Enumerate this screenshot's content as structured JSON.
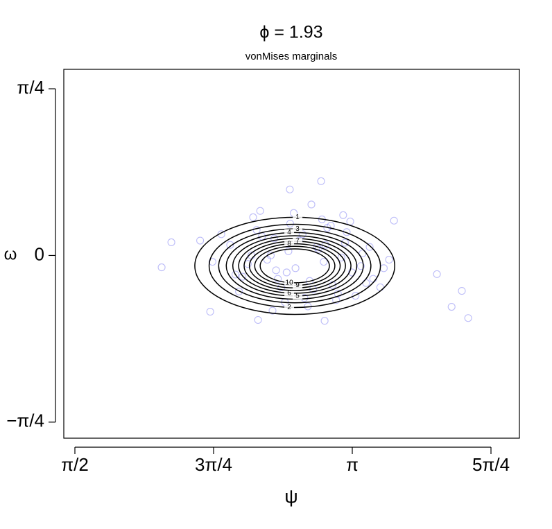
{
  "chart_data": {
    "type": "contour",
    "title": "ϕ = 1.93",
    "subtitle": "vonMises marginals",
    "x_label": "ψ",
    "y_label": "ω",
    "xlim": [
      1.508,
      4.088
    ],
    "ylim": [
      -0.861,
      0.877
    ],
    "xticks": [
      {
        "value": 1.5708,
        "label": "π/2"
      },
      {
        "value": 2.3562,
        "label": "3π/4"
      },
      {
        "value": 3.1416,
        "label": "π"
      },
      {
        "value": 3.927,
        "label": "5π/4"
      }
    ],
    "yticks": [
      {
        "value": -0.7854,
        "label": "−π/4"
      },
      0,
      {
        "value": 0.7854,
        "label": "π/4"
      }
    ],
    "point_color": "#6a6af0",
    "contour_color": "#000000",
    "x": [
      2.062,
      2.117,
      3.621,
      3.704,
      3.762,
      3.798,
      2.788,
      2.965,
      3.378,
      2.337,
      2.608,
      2.985,
      2.45,
      2.52,
      2.6,
      2.66,
      2.7,
      2.74,
      2.78,
      2.82,
      2.86,
      2.9,
      2.94,
      2.98,
      3.02,
      3.06,
      3.1,
      3.14,
      3.2,
      3.26,
      2.55,
      2.63,
      2.71,
      2.79,
      2.87,
      2.95,
      3.03,
      3.11,
      3.19,
      2.48,
      2.58,
      2.68,
      2.76,
      2.84,
      2.92,
      3.0,
      3.08,
      3.16,
      3.24,
      3.32,
      2.4,
      2.5,
      2.62,
      2.72,
      2.81,
      2.89,
      2.97,
      3.05,
      3.13,
      3.22,
      2.35,
      3.35,
      2.28,
      3.3,
      2.69,
      2.91,
      3.09,
      2.57,
      2.77,
      2.99
    ],
    "y": [
      -0.056,
      0.062,
      -0.088,
      -0.242,
      -0.167,
      -0.295,
      0.311,
      0.35,
      0.164,
      -0.265,
      -0.304,
      -0.308,
      0.05,
      -0.1,
      0.12,
      -0.02,
      0.08,
      -0.15,
      0.02,
      -0.06,
      0.1,
      -0.12,
      0.04,
      -0.03,
      0.14,
      -0.18,
      0.06,
      -0.08,
      0.01,
      -0.11,
      -0.04,
      0.09,
      -0.07,
      0.15,
      -0.2,
      0.03,
      -0.14,
      0.11,
      -0.05,
      -0.09,
      0.18,
      0.0,
      -0.22,
      0.07,
      -0.16,
      0.13,
      -0.01,
      -0.19,
      0.04,
      -0.06,
      0.1,
      -0.17,
      0.21,
      -0.11,
      0.2,
      -0.24,
      0.17,
      -0.21,
      0.16,
      -0.13,
      -0.03,
      -0.02,
      0.07,
      -0.15,
      -0.26,
      0.24,
      0.19,
      0.0,
      -0.08,
      0.05
    ],
    "center": [
      2.816,
      -0.049
    ],
    "contours": [
      {
        "level": 1,
        "rx": 0.566,
        "ry": 0.229
      },
      {
        "level": 2,
        "rx": 0.485,
        "ry": 0.196
      },
      {
        "level": 3,
        "rx": 0.431,
        "ry": 0.174
      },
      {
        "level": 4,
        "rx": 0.388,
        "ry": 0.157
      },
      {
        "level": 5,
        "rx": 0.351,
        "ry": 0.142
      },
      {
        "level": 6,
        "rx": 0.318,
        "ry": 0.129
      },
      {
        "level": 7,
        "rx": 0.287,
        "ry": 0.116
      },
      {
        "level": 8,
        "rx": 0.257,
        "ry": 0.104
      },
      {
        "level": 9,
        "rx": 0.227,
        "ry": 0.092
      },
      {
        "level": 10,
        "rx": 0.196,
        "ry": 0.08
      }
    ]
  }
}
